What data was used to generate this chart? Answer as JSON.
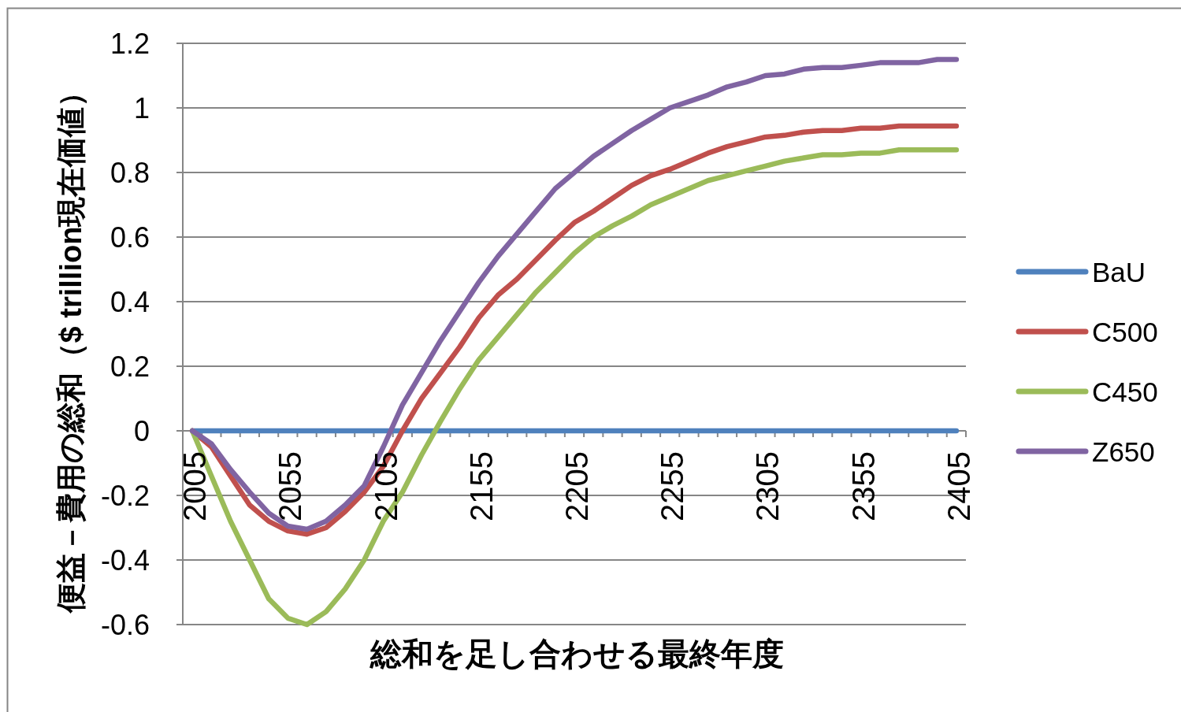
{
  "chart_data": {
    "type": "line",
    "xlabel": "総和を足し合わせる最終年度",
    "ylabel": "便益－費用の総和（$ trillion現在価値）",
    "categories": [
      "2005",
      null,
      null,
      null,
      null,
      "2055",
      null,
      null,
      null,
      null,
      "2105",
      null,
      null,
      null,
      null,
      "2155",
      null,
      null,
      null,
      null,
      "2205",
      null,
      null,
      null,
      null,
      "2255",
      null,
      null,
      null,
      null,
      "2305",
      null,
      null,
      null,
      null,
      "2355",
      null,
      null,
      null,
      null,
      "2405"
    ],
    "series": [
      {
        "name": "BaU",
        "color": "#4f81bd",
        "values": [
          0,
          0,
          0,
          0,
          0,
          0,
          0,
          0,
          0,
          0,
          0,
          0,
          0,
          0,
          0,
          0,
          0,
          0,
          0,
          0,
          0,
          0,
          0,
          0,
          0,
          0,
          0,
          0,
          0,
          0,
          0,
          0,
          0,
          0,
          0,
          0,
          0,
          0,
          0,
          0,
          0
        ]
      },
      {
        "name": "C500",
        "color": "#c0504d",
        "values": [
          0,
          -0.05,
          -0.14,
          -0.23,
          -0.28,
          -0.31,
          -0.32,
          -0.3,
          -0.25,
          -0.19,
          -0.11,
          0,
          0.1,
          0.18,
          0.26,
          0.35,
          0.42,
          0.47,
          0.53,
          0.59,
          0.645,
          0.68,
          0.72,
          0.76,
          0.79,
          0.81,
          0.835,
          0.86,
          0.88,
          0.895,
          0.91,
          0.915,
          0.925,
          0.93,
          0.93,
          0.937,
          0.937,
          0.944,
          0.944,
          0.944,
          0.944
        ]
      },
      {
        "name": "C450",
        "color": "#9bbb59",
        "values": [
          0,
          -0.14,
          -0.28,
          -0.4,
          -0.52,
          -0.58,
          -0.6,
          -0.56,
          -0.49,
          -0.4,
          -0.28,
          -0.19,
          -0.075,
          0.03,
          0.13,
          0.22,
          0.29,
          0.36,
          0.43,
          0.49,
          0.55,
          0.6,
          0.635,
          0.665,
          0.7,
          0.725,
          0.75,
          0.775,
          0.79,
          0.805,
          0.82,
          0.835,
          0.845,
          0.855,
          0.855,
          0.86,
          0.86,
          0.87,
          0.87,
          0.87,
          0.87
        ]
      },
      {
        "name": "Z650",
        "color": "#8064a2",
        "values": [
          0,
          -0.04,
          -0.12,
          -0.19,
          -0.255,
          -0.295,
          -0.305,
          -0.28,
          -0.23,
          -0.17,
          -0.05,
          0.08,
          0.18,
          0.28,
          0.37,
          0.46,
          0.54,
          0.61,
          0.68,
          0.75,
          0.8,
          0.85,
          0.89,
          0.93,
          0.965,
          1.0,
          1.02,
          1.04,
          1.065,
          1.08,
          1.1,
          1.105,
          1.12,
          1.125,
          1.125,
          1.132,
          1.14,
          1.14,
          1.14,
          1.15,
          1.15
        ]
      }
    ],
    "ylim": [
      -0.6,
      1.2
    ],
    "yticks": [
      -0.6,
      -0.4,
      -0.2,
      0,
      0.2,
      0.4,
      0.6,
      0.8,
      1,
      1.2
    ],
    "grid": "y",
    "legend": "right",
    "marker": "none",
    "line_style": "solid"
  }
}
